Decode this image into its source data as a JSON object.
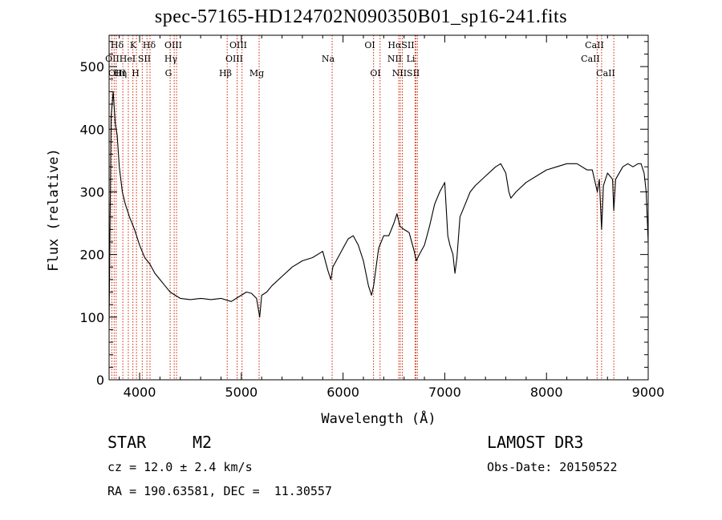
{
  "chart_data": {
    "type": "line",
    "title": "spec-57165-HD124702N090350B01_sp16-241.fits",
    "xlabel": "Wavelength (Å)",
    "ylabel": "Flux (relative)",
    "xlim": [
      3700,
      9000
    ],
    "ylim": [
      0,
      550
    ],
    "xticks": [
      4000,
      5000,
      6000,
      7000,
      8000,
      9000
    ],
    "yticks": [
      0,
      100,
      200,
      300,
      400,
      500
    ],
    "grid": false,
    "series": [
      {
        "x": [
          3700,
          3720,
          3740,
          3760,
          3780,
          3800,
          3830,
          3860,
          3900,
          3950,
          4000,
          4050,
          4100,
          4150,
          4200,
          4250,
          4300,
          4350,
          4400,
          4500,
          4600,
          4700,
          4800,
          4900,
          4950,
          5000,
          5050,
          5100,
          5150,
          5180,
          5200,
          5250,
          5300,
          5400,
          5500,
          5600,
          5700,
          5800,
          5850,
          5880,
          5900,
          5950,
          6000,
          6050,
          6100,
          6150,
          6200,
          6250,
          6280,
          6300,
          6350,
          6400,
          6450,
          6500,
          6530,
          6560,
          6600,
          6650,
          6700,
          6720,
          6750,
          6800,
          6850,
          6900,
          6950,
          7000,
          7030,
          7050,
          7080,
          7100,
          7120,
          7150,
          7200,
          7250,
          7300,
          7400,
          7500,
          7550,
          7600,
          7630,
          7650,
          7700,
          7800,
          7900,
          8000,
          8100,
          8200,
          8300,
          8400,
          8450,
          8500,
          8520,
          8542,
          8560,
          8600,
          8650,
          8662,
          8680,
          8750,
          8800,
          8850,
          8900,
          8930,
          8960,
          8980,
          9000
        ],
        "y": [
          90,
          420,
          460,
          410,
          390,
          340,
          300,
          280,
          260,
          240,
          215,
          195,
          185,
          170,
          160,
          150,
          140,
          135,
          130,
          128,
          130,
          128,
          130,
          125,
          130,
          135,
          140,
          138,
          130,
          100,
          135,
          140,
          150,
          165,
          180,
          190,
          195,
          205,
          175,
          160,
          180,
          195,
          210,
          225,
          230,
          215,
          190,
          150,
          135,
          150,
          210,
          230,
          230,
          250,
          265,
          245,
          240,
          235,
          205,
          190,
          200,
          215,
          245,
          280,
          300,
          315,
          230,
          215,
          200,
          170,
          195,
          260,
          280,
          300,
          310,
          325,
          340,
          345,
          330,
          300,
          290,
          300,
          315,
          325,
          335,
          340,
          345,
          345,
          335,
          335,
          300,
          320,
          240,
          310,
          330,
          320,
          270,
          320,
          340,
          345,
          340,
          345,
          345,
          330,
          300,
          220
        ]
      }
    ],
    "lines": [
      "Hδ",
      "K",
      "Hδ",
      "OIII",
      "OIII",
      "OI",
      "HαSII",
      "CaII",
      "OII",
      "HeI",
      "SII",
      "Hγ",
      "OIII",
      "Na",
      "NII",
      "Li",
      "CaII",
      "OIII",
      "Hη",
      "H",
      "G",
      "Hβ",
      "Mg",
      "OI",
      "NIISII",
      "CaII"
    ]
  },
  "footer": {
    "object_class": "STAR",
    "subclass": "M2",
    "survey": "LAMOST DR3",
    "cz": "cz = 12.0 ± 2.4 km/s",
    "obs_date": "Obs-Date: 20150522",
    "coords": "RA = 190.63581, DEC =  11.30557"
  }
}
